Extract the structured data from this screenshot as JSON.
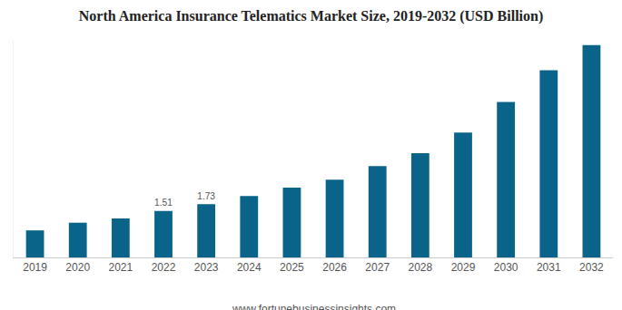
{
  "chart_data": {
    "type": "bar",
    "title": "North America Insurance Telematics Market Size, 2019-2032 (USD Billion)",
    "categories": [
      "2019",
      "2020",
      "2021",
      "2022",
      "2023",
      "2024",
      "2025",
      "2026",
      "2027",
      "2028",
      "2029",
      "2030",
      "2031",
      "2032"
    ],
    "values": [
      0.88,
      1.13,
      1.27,
      1.51,
      1.73,
      2.0,
      2.27,
      2.53,
      2.97,
      3.39,
      4.06,
      5.06,
      6.09,
      6.91
    ],
    "value_labels": [
      null,
      null,
      null,
      "1.51",
      "1.73",
      null,
      null,
      null,
      null,
      null,
      null,
      null,
      null,
      null
    ],
    "data_labels": true,
    "color": "#0a6389",
    "ylim": [
      0,
      7.05
    ],
    "tick_labels": "x",
    "grid": false,
    "source": "www.fortunebusinessinsights.com"
  }
}
